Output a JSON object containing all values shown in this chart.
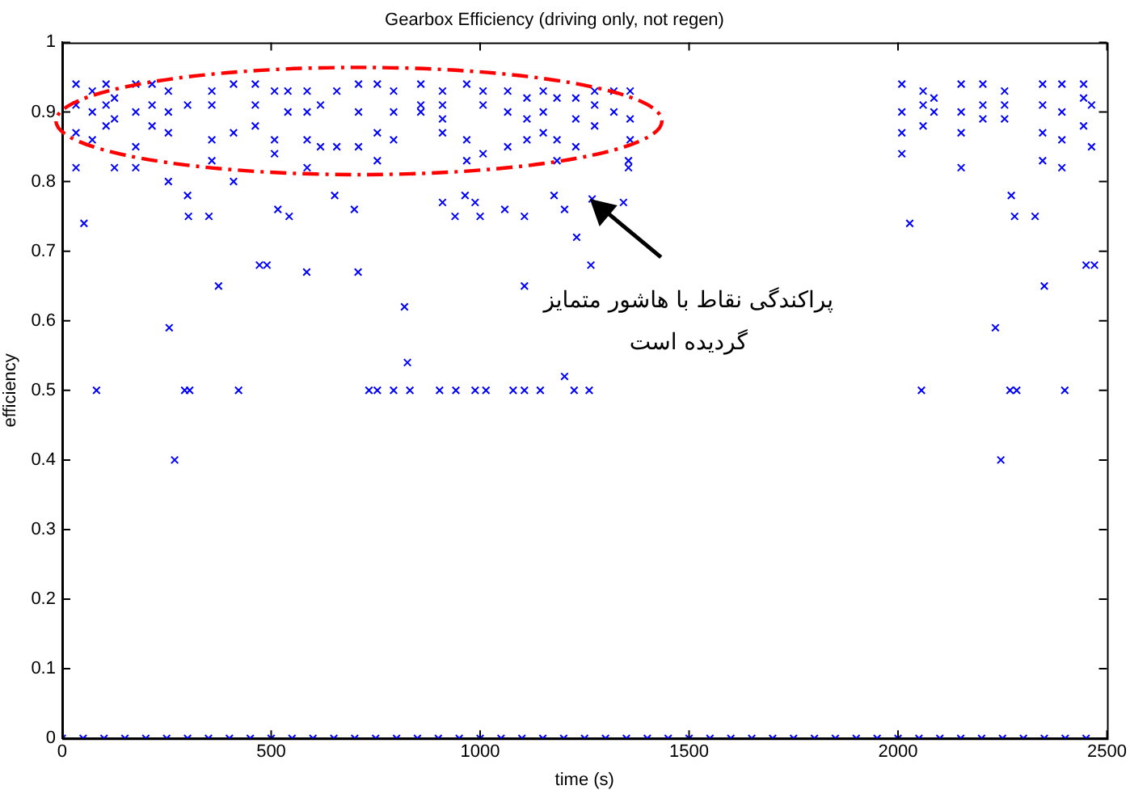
{
  "chart_data": {
    "type": "scatter",
    "title": "Gearbox Efficiency (driving only, not regen)",
    "xlabel": "time (s)",
    "ylabel": "efficiency",
    "xlim": [
      0,
      2500
    ],
    "xticks": [
      0,
      500,
      1000,
      1500,
      2000,
      2500
    ],
    "ylim": [
      0,
      1
    ],
    "yticks": [
      0,
      0.1,
      0.2,
      0.3,
      0.4,
      0.5,
      0.6,
      0.7,
      0.8,
      0.9,
      1
    ],
    "grid": false,
    "legend": false,
    "marker": "cross",
    "annotations": [
      "پراکندگی نقاط با هاشور متمایز گردیده است"
    ],
    "series": [
      {
        "color": "#0000ff",
        "x": [
          33,
          33,
          33,
          33,
          72,
          72,
          72,
          105,
          105,
          105,
          125,
          125,
          125,
          176,
          176,
          176,
          176,
          215,
          215,
          215,
          254,
          254,
          254,
          254,
          300,
          300,
          358,
          358,
          358,
          358,
          410,
          410,
          410,
          462,
          462,
          462,
          508,
          508,
          508,
          540,
          540,
          586,
          586,
          586,
          586,
          618,
          618,
          657,
          657,
          709,
          709,
          709,
          754,
          754,
          754,
          793,
          793,
          793,
          858,
          858,
          858,
          910,
          910,
          910,
          910,
          968,
          968,
          968,
          1007,
          1007,
          1007,
          1066,
          1066,
          1066,
          1112,
          1112,
          1112,
          1151,
          1151,
          1151,
          1184,
          1184,
          1184,
          1229,
          1229,
          1229,
          1274,
          1274,
          1274,
          1320,
          1320,
          1359,
          1359,
          1359,
          1355,
          1355,
          2009,
          2009,
          2009,
          2009,
          2060,
          2060,
          2060,
          2086,
          2086,
          2151,
          2151,
          2151,
          2151,
          2203,
          2203,
          2203,
          2255,
          2255,
          2255,
          2346,
          2346,
          2346,
          2346,
          2392,
          2392,
          2392,
          2392,
          2444,
          2444,
          2444,
          2463,
          2463,
          52,
          82,
          256,
          269,
          293,
          305,
          302,
          351,
          374,
          422,
          472,
          490,
          516,
          543,
          585,
          652,
          699,
          708,
          734,
          754,
          793,
          819,
          826,
          832,
          903,
          942,
          910,
          940,
          964,
          988,
          988,
          1014,
          1000,
          1059,
          1079,
          1106,
          1106,
          1106,
          1144,
          1177,
          1202,
          1202,
          1225,
          1231,
          1261,
          1265,
          1268,
          1343,
          2028,
          2056,
          2233,
          2246,
          2268,
          2284,
          2271,
          2279,
          2328,
          2350,
          2399,
          2450,
          2470,
          0,
          50,
          100,
          150,
          200,
          250,
          300,
          350,
          400,
          450,
          500,
          550,
          600,
          650,
          700,
          750,
          800,
          850,
          900,
          950,
          1000,
          1050,
          1100,
          1150,
          1200,
          1250,
          1300,
          1350,
          1400,
          1450,
          1500,
          1550,
          1600,
          1650,
          1700,
          1750,
          1800,
          1850,
          1900,
          1950,
          2000,
          2050,
          2100,
          2150,
          2200,
          2250,
          2300,
          2350,
          2400,
          2450
        ],
        "values": [
          0.94,
          0.91,
          0.87,
          0.82,
          0.93,
          0.9,
          0.86,
          0.94,
          0.91,
          0.88,
          0.92,
          0.89,
          0.82,
          0.94,
          0.9,
          0.85,
          0.82,
          0.94,
          0.91,
          0.88,
          0.93,
          0.9,
          0.87,
          0.8,
          0.91,
          0.78,
          0.93,
          0.91,
          0.86,
          0.83,
          0.94,
          0.87,
          0.8,
          0.94,
          0.91,
          0.88,
          0.93,
          0.86,
          0.84,
          0.93,
          0.9,
          0.93,
          0.9,
          0.86,
          0.82,
          0.91,
          0.85,
          0.93,
          0.85,
          0.94,
          0.9,
          0.85,
          0.94,
          0.87,
          0.83,
          0.93,
          0.9,
          0.86,
          0.94,
          0.91,
          0.9,
          0.93,
          0.91,
          0.89,
          0.87,
          0.94,
          0.86,
          0.83,
          0.93,
          0.91,
          0.84,
          0.93,
          0.9,
          0.85,
          0.92,
          0.89,
          0.86,
          0.93,
          0.9,
          0.87,
          0.92,
          0.86,
          0.83,
          0.92,
          0.89,
          0.85,
          0.93,
          0.91,
          0.88,
          0.93,
          0.9,
          0.93,
          0.89,
          0.86,
          0.83,
          0.82,
          0.94,
          0.9,
          0.87,
          0.84,
          0.93,
          0.91,
          0.88,
          0.92,
          0.9,
          0.94,
          0.9,
          0.87,
          0.82,
          0.94,
          0.91,
          0.89,
          0.93,
          0.91,
          0.89,
          0.94,
          0.91,
          0.87,
          0.83,
          0.94,
          0.9,
          0.86,
          0.82,
          0.94,
          0.92,
          0.88,
          0.91,
          0.85,
          0.74,
          0.5,
          0.59,
          0.4,
          0.5,
          0.5,
          0.75,
          0.75,
          0.65,
          0.5,
          0.68,
          0.68,
          0.76,
          0.75,
          0.67,
          0.78,
          0.76,
          0.67,
          0.5,
          0.5,
          0.5,
          0.62,
          0.54,
          0.5,
          0.5,
          0.5,
          0.77,
          0.75,
          0.78,
          0.77,
          0.5,
          0.5,
          0.75,
          0.76,
          0.5,
          0.75,
          0.65,
          0.5,
          0.5,
          0.78,
          0.76,
          0.52,
          0.5,
          0.72,
          0.5,
          0.68,
          0.775,
          0.77,
          0.74,
          0.5,
          0.59,
          0.4,
          0.5,
          0.5,
          0.78,
          0.75,
          0.75,
          0.65,
          0.5,
          0.68,
          0.68,
          0,
          0,
          0,
          0,
          0,
          0,
          0,
          0,
          0,
          0,
          0,
          0,
          0,
          0,
          0,
          0,
          0,
          0,
          0,
          0,
          0,
          0,
          0,
          0,
          0,
          0,
          0,
          0,
          0,
          0,
          0,
          0,
          0,
          0,
          0,
          0,
          0,
          0,
          0,
          0,
          0,
          0,
          0,
          0,
          0,
          0,
          0,
          0,
          0,
          0
        ]
      }
    ]
  }
}
